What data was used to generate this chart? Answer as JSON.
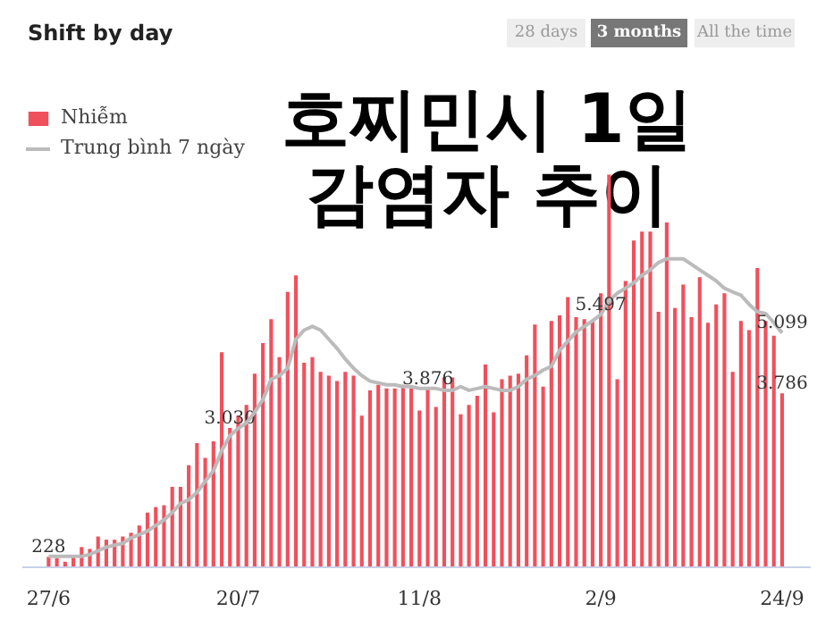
{
  "chart_data": {
    "type": "bar",
    "title": "Shift by day",
    "annotations": [
      "28 days",
      "3 months",
      "All the time",
      "호찌민시 1일\n감염자 추이"
    ],
    "categories": [
      "27/6",
      null,
      null,
      null,
      null,
      null,
      null,
      null,
      null,
      null,
      null,
      null,
      null,
      null,
      null,
      null,
      null,
      null,
      null,
      null,
      null,
      null,
      null,
      "20/7",
      null,
      null,
      null,
      null,
      null,
      null,
      null,
      null,
      null,
      null,
      null,
      null,
      null,
      null,
      null,
      null,
      null,
      null,
      null,
      null,
      null,
      "11/8",
      null,
      null,
      null,
      null,
      null,
      null,
      null,
      null,
      null,
      null,
      null,
      null,
      null,
      null,
      null,
      null,
      null,
      null,
      null,
      null,
      null,
      "2/9",
      null,
      null,
      null,
      null,
      null,
      null,
      null,
      null,
      null,
      null,
      null,
      null,
      null,
      null,
      null,
      null,
      null,
      null,
      null,
      null,
      null,
      "24/9"
    ],
    "legend": "top left",
    "tick_labels": "x",
    "series": [
      {
        "name": "Nhiễm",
        "color": "#f0505c",
        "values": [
          228,
          200,
          120,
          240,
          440,
          400,
          670,
          600,
          600,
          670,
          750,
          910,
          1190,
          1310,
          1350,
          1750,
          1750,
          2220,
          2700,
          2380,
          2740,
          4680,
          3030,
          3300,
          3530,
          4210,
          4880,
          5400,
          4570,
          5990,
          6350,
          4450,
          4570,
          4250,
          4170,
          4050,
          4250,
          4170,
          3300,
          3850,
          3970,
          3890,
          3890,
          3970,
          3890,
          3410,
          3876,
          3490,
          4130,
          4130,
          3330,
          3530,
          3730,
          4410,
          3370,
          4090,
          4170,
          4210,
          4610,
          5280,
          3930,
          5360,
          5480,
          5880,
          5440,
          5400,
          5360,
          5960,
          8540,
          4090,
          6230,
          7110,
          7300,
          7300,
          5560,
          7500,
          5640,
          6150,
          5440,
          6310,
          5320,
          5720,
          5960,
          4250,
          5360,
          5160,
          6510,
          5360,
          5040,
          3786
        ],
        "value_labels": [
          "228",
          null,
          null,
          null,
          null,
          null,
          null,
          null,
          null,
          null,
          null,
          null,
          null,
          null,
          null,
          null,
          null,
          null,
          null,
          null,
          null,
          null,
          "3.030",
          null,
          null,
          null,
          null,
          null,
          null,
          null,
          null,
          null,
          null,
          null,
          null,
          null,
          null,
          null,
          null,
          null,
          null,
          null,
          null,
          null,
          null,
          null,
          "3.876",
          null,
          null,
          null,
          null,
          null,
          null,
          null,
          null,
          null,
          null,
          null,
          null,
          null,
          null,
          null,
          null,
          null,
          null,
          null,
          null,
          null,
          null,
          null,
          null,
          null,
          null,
          null,
          null,
          null,
          null,
          null,
          null,
          null,
          null,
          null,
          null,
          null,
          null,
          null,
          null,
          null,
          null,
          "3.786"
        ]
      },
      {
        "name": "Trung bình 7 ngày",
        "type": "line",
        "color": "#bbbbbb",
        "values": [
          240,
          240,
          240,
          240,
          240,
          280,
          360,
          440,
          480,
          520,
          640,
          710,
          790,
          910,
          1030,
          1190,
          1390,
          1470,
          1630,
          1870,
          2100,
          2540,
          2860,
          3020,
          3140,
          3370,
          3650,
          4090,
          4170,
          4330,
          4960,
          5160,
          5240,
          5160,
          4960,
          4760,
          4530,
          4330,
          4170,
          4050,
          4010,
          3970,
          3970,
          3930,
          3930,
          3890,
          3890,
          3890,
          3850,
          3850,
          3930,
          3850,
          3890,
          3930,
          3890,
          3850,
          3850,
          3930,
          4090,
          4170,
          4290,
          4370,
          4720,
          4920,
          5120,
          5240,
          5360,
          5497,
          5800,
          5960,
          6070,
          6190,
          6350,
          6470,
          6630,
          6710,
          6710,
          6710,
          6590,
          6470,
          6350,
          6230,
          6070,
          5990,
          5920,
          5720,
          5560,
          5520,
          5320,
          5099
        ],
        "value_labels": [
          null,
          null,
          null,
          null,
          null,
          null,
          null,
          null,
          null,
          null,
          null,
          null,
          null,
          null,
          null,
          null,
          null,
          null,
          null,
          null,
          null,
          null,
          null,
          null,
          null,
          null,
          null,
          null,
          null,
          null,
          null,
          null,
          null,
          null,
          null,
          null,
          null,
          null,
          null,
          null,
          null,
          null,
          null,
          null,
          null,
          null,
          null,
          null,
          null,
          null,
          null,
          null,
          null,
          null,
          null,
          null,
          null,
          null,
          null,
          null,
          null,
          null,
          null,
          null,
          null,
          null,
          null,
          "5.497",
          null,
          null,
          null,
          null,
          null,
          null,
          null,
          null,
          null,
          null,
          null,
          null,
          null,
          null,
          null,
          null,
          null,
          null,
          null,
          null,
          null,
          "5.099"
        ]
      }
    ]
  }
}
